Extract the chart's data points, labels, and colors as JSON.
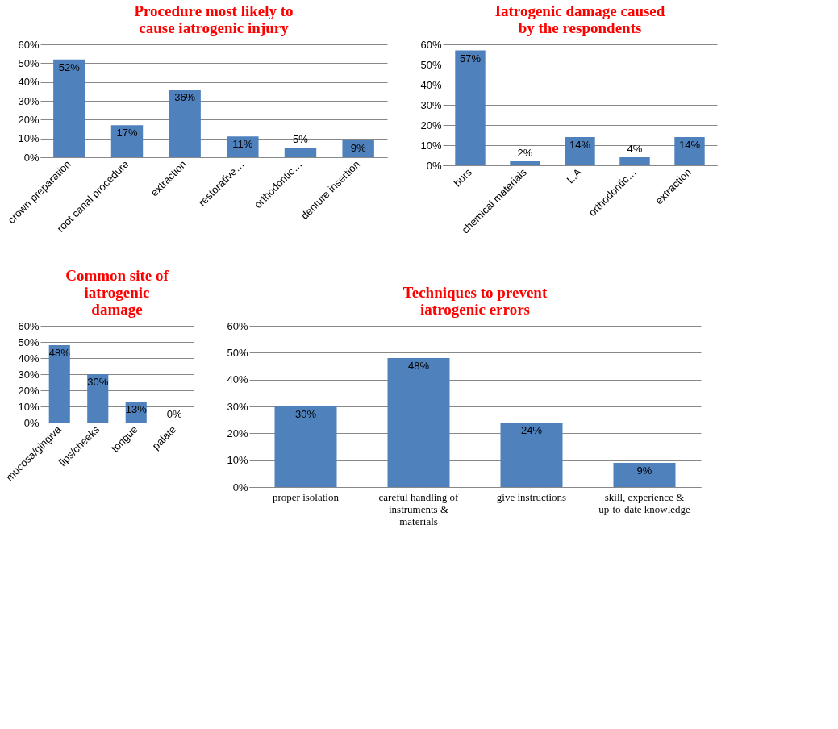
{
  "chart_data": [
    {
      "type": "bar",
      "title": "Procedure most likely to cause iatrogenic injury",
      "categories": [
        "crown preparation",
        "root canal procedure",
        "extraction",
        "restorative…",
        "orthodontic…",
        "denture insertion"
      ],
      "values": [
        52,
        17,
        36,
        11,
        5,
        9
      ],
      "color": "#4f81bd",
      "value_labels": [
        "52%",
        "17%",
        "36%",
        "11%",
        "5%",
        "9%"
      ],
      "ylim": [
        0,
        60
      ],
      "yticks": [
        {
          "value": 0,
          "label": "0%"
        },
        {
          "value": 10,
          "label": "10%"
        },
        {
          "value": 20,
          "label": "20%"
        },
        {
          "value": 30,
          "label": "30%"
        },
        {
          "value": 40,
          "label": "40%"
        },
        {
          "value": 50,
          "label": "50%"
        },
        {
          "value": 60,
          "label": "60%"
        }
      ],
      "grid": "y",
      "legend": false
    },
    {
      "type": "bar",
      "title": "Iatrogenic damage caused by the respondents",
      "categories": [
        "burs",
        "chemical materials",
        "L.A",
        "orthodontic…",
        "extraction"
      ],
      "values": [
        57,
        2,
        14,
        4,
        14
      ],
      "color": "#4f81bd",
      "value_labels": [
        "57%",
        "2%",
        "14%",
        "4%",
        "14%"
      ],
      "ylim": [
        0,
        60
      ],
      "yticks": [
        {
          "value": 0,
          "label": "0%"
        },
        {
          "value": 10,
          "label": "10%"
        },
        {
          "value": 20,
          "label": "20%"
        },
        {
          "value": 30,
          "label": "30%"
        },
        {
          "value": 40,
          "label": "40%"
        },
        {
          "value": 50,
          "label": "50%"
        },
        {
          "value": 60,
          "label": "60%"
        }
      ],
      "grid": "y",
      "legend": false
    },
    {
      "type": "bar",
      "title": "Common site of iatrogenic damage",
      "categories": [
        "mucosa/gingiva",
        "lips/cheeks",
        "tongue",
        "palate"
      ],
      "values": [
        48,
        30,
        13,
        0
      ],
      "color": "#4f81bd",
      "value_labels": [
        "48%",
        "30%",
        "13%",
        "0%"
      ],
      "ylim": [
        0,
        60
      ],
      "yticks": [
        {
          "value": 0,
          "label": "0%"
        },
        {
          "value": 10,
          "label": "10%"
        },
        {
          "value": 20,
          "label": "20%"
        },
        {
          "value": 30,
          "label": "30%"
        },
        {
          "value": 40,
          "label": "40%"
        },
        {
          "value": 50,
          "label": "50%"
        },
        {
          "value": 60,
          "label": "60%"
        }
      ],
      "grid": "y",
      "legend": false
    },
    {
      "type": "bar",
      "title": "Techniques to prevent iatrogenic errors",
      "categories": [
        "proper isolation",
        "careful handling of instruments & materials",
        "give instructions",
        "skill, experience & up-to-date knowledge"
      ],
      "values": [
        30,
        48,
        24,
        9
      ],
      "color": "#4f81bd",
      "value_labels": [
        "30%",
        "48%",
        "24%",
        "9%"
      ],
      "ylim": [
        0,
        60
      ],
      "yticks": [
        {
          "value": 0,
          "label": "0%"
        },
        {
          "value": 10,
          "label": "10%"
        },
        {
          "value": 20,
          "label": "20%"
        },
        {
          "value": 30,
          "label": "30%"
        },
        {
          "value": 40,
          "label": "40%"
        },
        {
          "value": 50,
          "label": "50%"
        },
        {
          "value": 60,
          "label": "60%"
        }
      ],
      "grid": "y",
      "legend": false
    }
  ]
}
